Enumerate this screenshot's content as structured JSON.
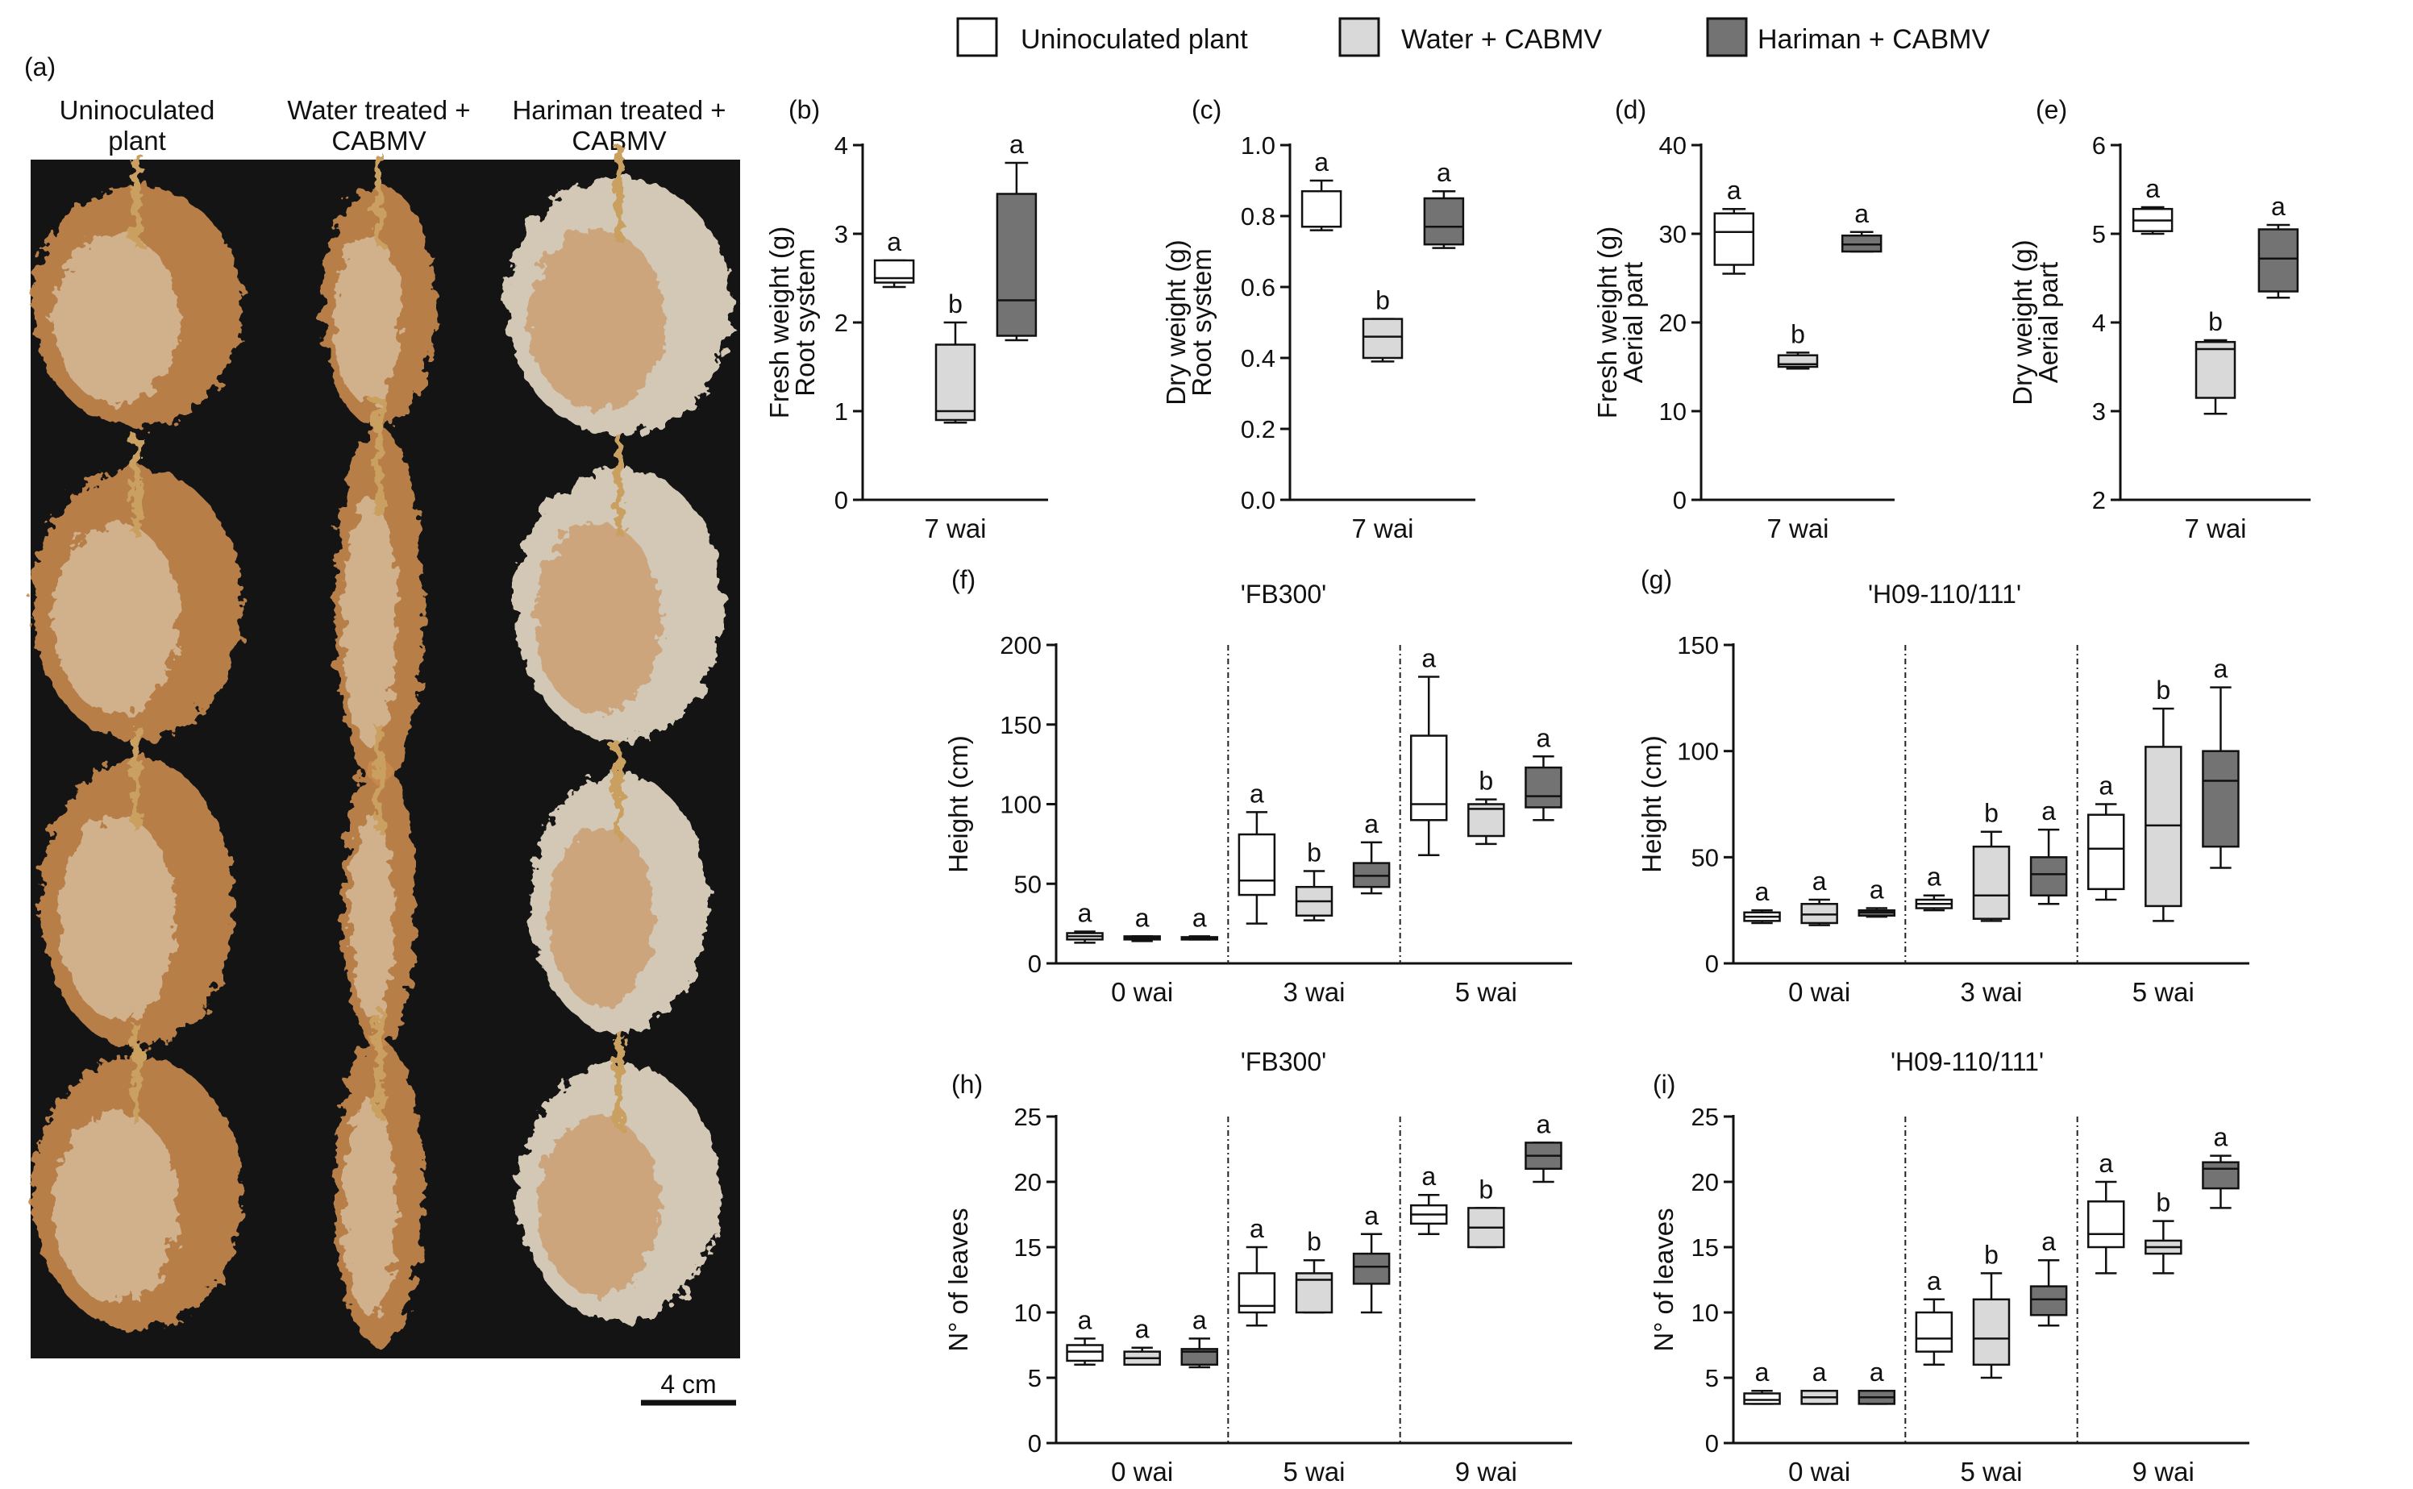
{
  "legend": {
    "items": [
      {
        "label": "Uninoculated plant",
        "color": "#ffffff"
      },
      {
        "label": "Water + CABMV",
        "color": "#d9d9d9"
      },
      {
        "label": "Hariman + CABMV",
        "color": "#737373"
      }
    ]
  },
  "photo": {
    "label": "(a)",
    "col_labels": [
      [
        "Uninoculated",
        "plant"
      ],
      [
        "Water treated +",
        "CABMV"
      ],
      [
        "Hariman treated +",
        "CABMV"
      ]
    ],
    "scalebar": "4 cm",
    "colors": {
      "background": "#111111",
      "root_light": "#e8dcc6",
      "root_dark": "#c98a4e"
    }
  },
  "chart_data": [
    {
      "id": "b",
      "panel_label": "(b)",
      "type": "box",
      "title": "",
      "ylabel": [
        "Fresh weight (g)",
        "Root system"
      ],
      "ylim": [
        0,
        4
      ],
      "yticks": [
        "0",
        "1",
        "2",
        "3",
        "4"
      ],
      "groups": [
        "7 wai"
      ],
      "boxes": [
        {
          "group": 0,
          "treatment": 0,
          "min": 2.4,
          "q1": 2.45,
          "median": 2.5,
          "q3": 2.7,
          "max": 2.7,
          "letter": "a"
        },
        {
          "group": 0,
          "treatment": 1,
          "min": 0.87,
          "q1": 0.9,
          "median": 1.0,
          "q3": 1.75,
          "max": 2.0,
          "letter": "b"
        },
        {
          "group": 0,
          "treatment": 2,
          "min": 1.8,
          "q1": 1.85,
          "median": 2.25,
          "q3": 3.45,
          "max": 3.8,
          "letter": "a"
        }
      ]
    },
    {
      "id": "c",
      "panel_label": "(c)",
      "type": "box",
      "title": "",
      "ylabel": [
        "Dry weight (g)",
        "Root system"
      ],
      "ylim": [
        0,
        1
      ],
      "yticks": [
        "0.0",
        "0.2",
        "0.4",
        "0.6",
        "0.8",
        "1.0"
      ],
      "groups": [
        "7 wai"
      ],
      "boxes": [
        {
          "group": 0,
          "treatment": 0,
          "min": 0.76,
          "q1": 0.77,
          "median": 0.77,
          "q3": 0.87,
          "max": 0.9,
          "letter": "a"
        },
        {
          "group": 0,
          "treatment": 1,
          "min": 0.39,
          "q1": 0.4,
          "median": 0.46,
          "q3": 0.51,
          "max": 0.51,
          "letter": "b"
        },
        {
          "group": 0,
          "treatment": 2,
          "min": 0.71,
          "q1": 0.72,
          "median": 0.77,
          "q3": 0.85,
          "max": 0.87,
          "letter": "a"
        }
      ]
    },
    {
      "id": "d",
      "panel_label": "(d)",
      "type": "box",
      "title": "",
      "ylabel": [
        "Fresh weight (g)",
        "Aerial part"
      ],
      "ylim": [
        0,
        40
      ],
      "yticks": [
        "0",
        "10",
        "20",
        "30",
        "40"
      ],
      "groups": [
        "7 wai"
      ],
      "boxes": [
        {
          "group": 0,
          "treatment": 0,
          "min": 25.5,
          "q1": 26.5,
          "median": 30.2,
          "q3": 32.3,
          "max": 32.8,
          "letter": "a"
        },
        {
          "group": 0,
          "treatment": 1,
          "min": 14.8,
          "q1": 15.0,
          "median": 15.3,
          "q3": 16.3,
          "max": 16.6,
          "letter": "b"
        },
        {
          "group": 0,
          "treatment": 2,
          "min": 28.0,
          "q1": 28.0,
          "median": 28.8,
          "q3": 29.8,
          "max": 30.2,
          "letter": "a"
        }
      ]
    },
    {
      "id": "e",
      "panel_label": "(e)",
      "type": "box",
      "title": "",
      "ylabel": [
        "Dry weight (g)",
        "Aerial part"
      ],
      "ylim": [
        2,
        6
      ],
      "yticks": [
        "2",
        "3",
        "4",
        "5",
        "6"
      ],
      "groups": [
        "7 wai"
      ],
      "boxes": [
        {
          "group": 0,
          "treatment": 0,
          "min": 5.0,
          "q1": 5.03,
          "median": 5.15,
          "q3": 5.28,
          "max": 5.3,
          "letter": "a"
        },
        {
          "group": 0,
          "treatment": 1,
          "min": 2.97,
          "q1": 3.15,
          "median": 3.7,
          "q3": 3.78,
          "max": 3.8,
          "letter": "b"
        },
        {
          "group": 0,
          "treatment": 2,
          "min": 4.28,
          "q1": 4.35,
          "median": 4.72,
          "q3": 5.05,
          "max": 5.1,
          "letter": "a"
        }
      ]
    },
    {
      "id": "f",
      "panel_label": "(f)",
      "type": "box",
      "title": "'FB300'",
      "ylabel": [
        "Height (cm)"
      ],
      "ylim": [
        0,
        200
      ],
      "yticks": [
        "0",
        "50",
        "100",
        "150",
        "200"
      ],
      "groups": [
        "0 wai",
        "3 wai",
        "5 wai"
      ],
      "boxes": [
        {
          "group": 0,
          "treatment": 0,
          "min": 13,
          "q1": 15,
          "median": 17,
          "q3": 19,
          "max": 20,
          "letter": "a"
        },
        {
          "group": 0,
          "treatment": 1,
          "min": 14,
          "q1": 15,
          "median": 16,
          "q3": 17,
          "max": 17,
          "letter": "a"
        },
        {
          "group": 0,
          "treatment": 2,
          "min": 15,
          "q1": 15.5,
          "median": 16,
          "q3": 16.5,
          "max": 17,
          "letter": "a"
        },
        {
          "group": 1,
          "treatment": 0,
          "min": 25,
          "q1": 43,
          "median": 52,
          "q3": 81,
          "max": 95,
          "letter": "a"
        },
        {
          "group": 1,
          "treatment": 1,
          "min": 27,
          "q1": 30,
          "median": 39,
          "q3": 48,
          "max": 58,
          "letter": "b"
        },
        {
          "group": 1,
          "treatment": 2,
          "min": 44,
          "q1": 48,
          "median": 55,
          "q3": 63,
          "max": 76,
          "letter": "a"
        },
        {
          "group": 2,
          "treatment": 0,
          "min": 68,
          "q1": 90,
          "median": 100,
          "q3": 143,
          "max": 180,
          "letter": "a"
        },
        {
          "group": 2,
          "treatment": 1,
          "min": 75,
          "q1": 80,
          "median": 97,
          "q3": 100,
          "max": 103,
          "letter": "b"
        },
        {
          "group": 2,
          "treatment": 2,
          "min": 90,
          "q1": 98,
          "median": 105,
          "q3": 123,
          "max": 130,
          "letter": "a"
        }
      ]
    },
    {
      "id": "g",
      "panel_label": "(g)",
      "type": "box",
      "title": "'H09-110/111'",
      "ylabel": [
        "Height (cm)"
      ],
      "ylim": [
        0,
        150
      ],
      "yticks": [
        "0",
        "50",
        "100",
        "150"
      ],
      "groups": [
        "0 wai",
        "3 wai",
        "5 wai"
      ],
      "boxes": [
        {
          "group": 0,
          "treatment": 0,
          "min": 19,
          "q1": 20,
          "median": 22,
          "q3": 24,
          "max": 25,
          "letter": "a"
        },
        {
          "group": 0,
          "treatment": 1,
          "min": 18,
          "q1": 19,
          "median": 23,
          "q3": 28,
          "max": 30,
          "letter": "a"
        },
        {
          "group": 0,
          "treatment": 2,
          "min": 22,
          "q1": 22.5,
          "median": 24,
          "q3": 25,
          "max": 26,
          "letter": "a"
        },
        {
          "group": 1,
          "treatment": 0,
          "min": 25,
          "q1": 26,
          "median": 28,
          "q3": 30,
          "max": 32,
          "letter": "a"
        },
        {
          "group": 1,
          "treatment": 1,
          "min": 20,
          "q1": 21,
          "median": 32,
          "q3": 55,
          "max": 62,
          "letter": "b"
        },
        {
          "group": 1,
          "treatment": 2,
          "min": 28,
          "q1": 32,
          "median": 42,
          "q3": 50,
          "max": 63,
          "letter": "a"
        },
        {
          "group": 2,
          "treatment": 0,
          "min": 30,
          "q1": 35,
          "median": 54,
          "q3": 70,
          "max": 75,
          "letter": "a"
        },
        {
          "group": 2,
          "treatment": 1,
          "min": 20,
          "q1": 27,
          "median": 65,
          "q3": 102,
          "max": 120,
          "letter": "b"
        },
        {
          "group": 2,
          "treatment": 2,
          "min": 45,
          "q1": 55,
          "median": 86,
          "q3": 100,
          "max": 130,
          "letter": "a"
        }
      ]
    },
    {
      "id": "h",
      "panel_label": "(h)",
      "type": "box",
      "title": "'FB300'",
      "ylabel": [
        "N° of leaves"
      ],
      "ylim": [
        0,
        25
      ],
      "yticks": [
        "0",
        "5",
        "10",
        "15",
        "20",
        "25"
      ],
      "groups": [
        "0 wai",
        "5 wai",
        "9 wai"
      ],
      "boxes": [
        {
          "group": 0,
          "treatment": 0,
          "min": 6,
          "q1": 6.3,
          "median": 7,
          "q3": 7.5,
          "max": 8,
          "letter": "a"
        },
        {
          "group": 0,
          "treatment": 1,
          "min": 6,
          "q1": 6,
          "median": 6.5,
          "q3": 7,
          "max": 7.3,
          "letter": "a"
        },
        {
          "group": 0,
          "treatment": 2,
          "min": 5.8,
          "q1": 6,
          "median": 7,
          "q3": 7.2,
          "max": 8,
          "letter": "a"
        },
        {
          "group": 1,
          "treatment": 0,
          "min": 9,
          "q1": 10,
          "median": 10.5,
          "q3": 13,
          "max": 15,
          "letter": "a"
        },
        {
          "group": 1,
          "treatment": 1,
          "min": 10,
          "q1": 10,
          "median": 12.5,
          "q3": 13,
          "max": 14,
          "letter": "b"
        },
        {
          "group": 1,
          "treatment": 2,
          "min": 10,
          "q1": 12.2,
          "median": 13.5,
          "q3": 14.5,
          "max": 16,
          "letter": "a"
        },
        {
          "group": 2,
          "treatment": 0,
          "min": 16,
          "q1": 16.8,
          "median": 17.5,
          "q3": 18.2,
          "max": 19,
          "letter": "a"
        },
        {
          "group": 2,
          "treatment": 1,
          "min": 15,
          "q1": 15,
          "median": 16.5,
          "q3": 18,
          "max": 18,
          "letter": "b"
        },
        {
          "group": 2,
          "treatment": 2,
          "min": 20,
          "q1": 21,
          "median": 22,
          "q3": 23,
          "max": 23,
          "letter": "a"
        }
      ]
    },
    {
      "id": "i",
      "panel_label": "(i)",
      "type": "box",
      "title": "'H09-110/111'",
      "ylabel": [
        "N° of leaves"
      ],
      "ylim": [
        0,
        25
      ],
      "yticks": [
        "0",
        "5",
        "10",
        "15",
        "20",
        "25"
      ],
      "groups": [
        "0 wai",
        "5 wai",
        "9 wai"
      ],
      "boxes": [
        {
          "group": 0,
          "treatment": 0,
          "min": 3,
          "q1": 3,
          "median": 3.3,
          "q3": 3.8,
          "max": 4,
          "letter": "a"
        },
        {
          "group": 0,
          "treatment": 1,
          "min": 3,
          "q1": 3,
          "median": 3.5,
          "q3": 4,
          "max": 4,
          "letter": "a"
        },
        {
          "group": 0,
          "treatment": 2,
          "min": 3,
          "q1": 3,
          "median": 3.5,
          "q3": 4,
          "max": 4,
          "letter": "a"
        },
        {
          "group": 1,
          "treatment": 0,
          "min": 6,
          "q1": 7,
          "median": 8,
          "q3": 10,
          "max": 11,
          "letter": "a"
        },
        {
          "group": 1,
          "treatment": 1,
          "min": 5,
          "q1": 6,
          "median": 8,
          "q3": 11,
          "max": 13,
          "letter": "b"
        },
        {
          "group": 1,
          "treatment": 2,
          "min": 9,
          "q1": 9.8,
          "median": 11,
          "q3": 12,
          "max": 14,
          "letter": "a"
        },
        {
          "group": 2,
          "treatment": 0,
          "min": 13,
          "q1": 15,
          "median": 16,
          "q3": 18.5,
          "max": 20,
          "letter": "a"
        },
        {
          "group": 2,
          "treatment": 1,
          "min": 13,
          "q1": 14.5,
          "median": 15,
          "q3": 15.5,
          "max": 17,
          "letter": "b"
        },
        {
          "group": 2,
          "treatment": 2,
          "min": 18,
          "q1": 19.5,
          "median": 21,
          "q3": 21.5,
          "max": 22,
          "letter": "a"
        }
      ]
    }
  ]
}
